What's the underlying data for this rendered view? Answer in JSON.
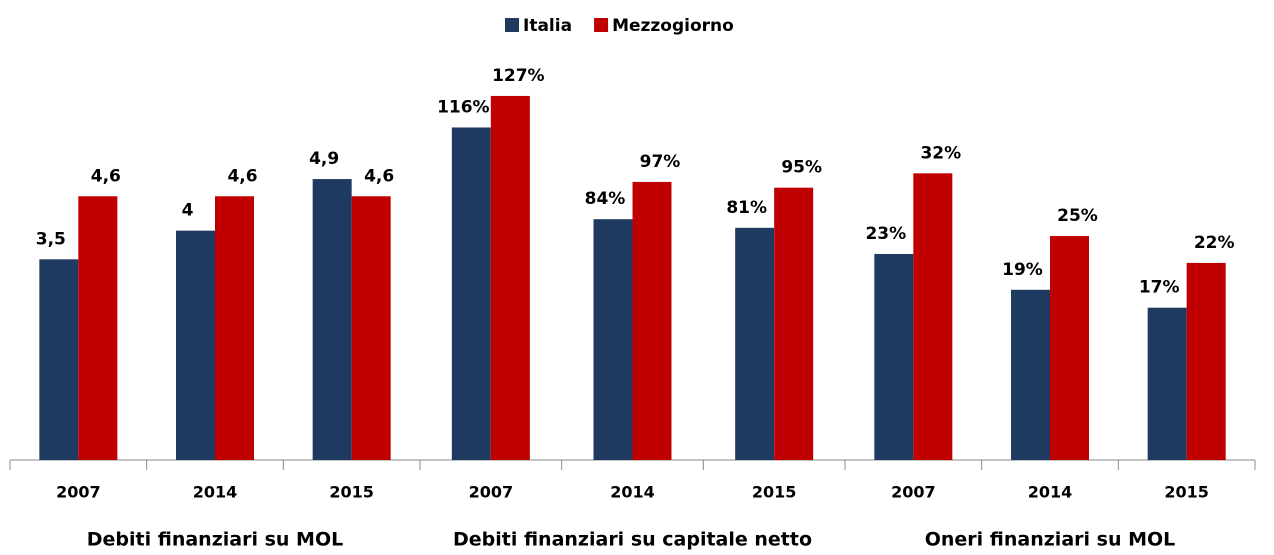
{
  "chart_data": [
    {
      "type": "bar",
      "title": "Debiti finanziari  su MOL",
      "categories": [
        "2007",
        "2014",
        "2015"
      ],
      "ylim": [
        0,
        7.5
      ],
      "series": [
        {
          "name": "Italia",
          "color": "#1f3a60",
          "values": [
            3.5,
            4,
            4.9
          ],
          "value_labels": [
            "3,5",
            "4",
            "4,9"
          ]
        },
        {
          "name": "Mezzogiorno",
          "color": "#c00000",
          "values": [
            4.6,
            4.6,
            4.6
          ],
          "value_labels": [
            "4,6",
            "4,6",
            "4,6"
          ]
        }
      ]
    },
    {
      "type": "bar",
      "title": "Debiti finanziari  su capitale netto",
      "categories": [
        "2007",
        "2014",
        "2015"
      ],
      "ylim": [
        0,
        150
      ],
      "series": [
        {
          "name": "Italia",
          "color": "#1f3a60",
          "values": [
            116,
            84,
            81
          ],
          "value_labels": [
            "116%",
            "84%",
            "81%"
          ]
        },
        {
          "name": "Mezzogiorno",
          "color": "#c00000",
          "values": [
            127,
            97,
            95
          ],
          "value_labels": [
            "127%",
            "97%",
            "95%"
          ]
        }
      ]
    },
    {
      "type": "bar",
      "title": "Oneri finanziari  su MOL",
      "categories": [
        "2007",
        "2014",
        "2015"
      ],
      "ylim": [
        0,
        48
      ],
      "series": [
        {
          "name": "Italia",
          "color": "#1f3a60",
          "values": [
            23,
            19,
            17
          ],
          "value_labels": [
            "23%",
            "19%",
            "17%"
          ]
        },
        {
          "name": "Mezzogiorno",
          "color": "#c00000",
          "values": [
            32,
            25,
            22
          ],
          "value_labels": [
            "32%",
            "25%",
            "22%"
          ]
        }
      ]
    }
  ]
}
